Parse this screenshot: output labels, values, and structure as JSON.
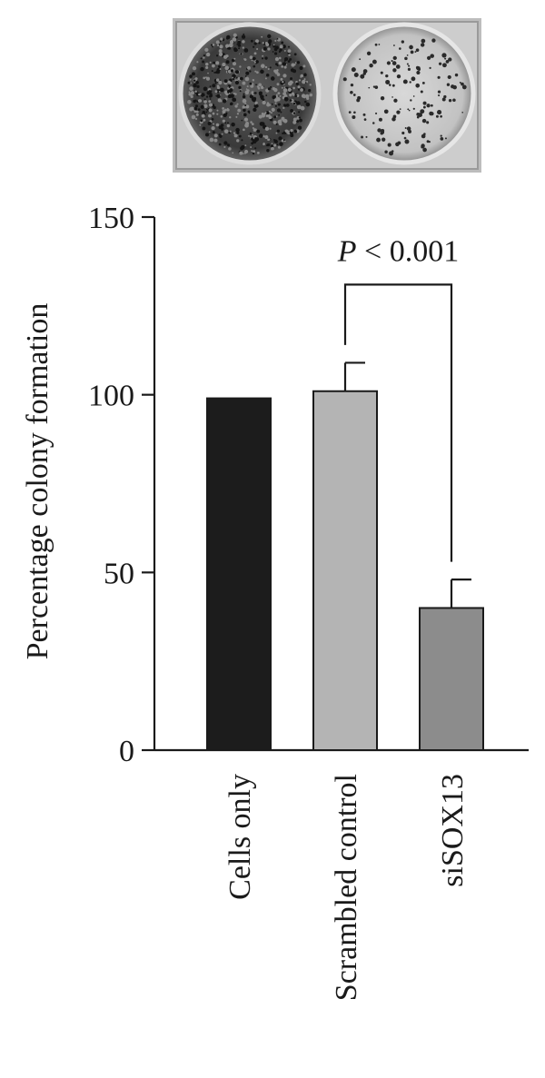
{
  "chart_data": {
    "type": "bar",
    "categories": [
      "Cells only",
      "Scrambled control",
      "siSOX13"
    ],
    "values": [
      99,
      101,
      40
    ],
    "errors": [
      0,
      8,
      8
    ],
    "bar_colors": [
      "#1c1c1c",
      "#b4b4b4",
      "#8c8c8c"
    ],
    "ylabel": "Percentage colony formation",
    "xlabel": "",
    "ylim": [
      0,
      150
    ],
    "yticks": [
      0,
      50,
      100,
      150
    ],
    "significance": {
      "from": "Scrambled control",
      "to": "siSOX13",
      "label_italic": "P",
      "label_rest": " < 0.001"
    }
  },
  "inset_image": {
    "description_icon": "colony-plates-photo",
    "plate_colors": [
      "#2e2e2e",
      "#cfcfcf"
    ]
  }
}
